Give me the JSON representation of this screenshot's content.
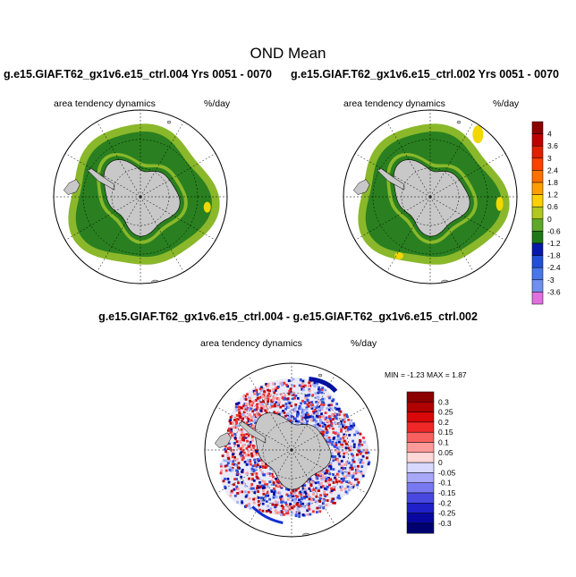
{
  "main_title": "OND Mean",
  "case_title_left": "g.e15.GIAF.T62_gx1v6.e15_ctrl.004  Yrs 0051 - 0070",
  "case_title_right": "g.e15.GIAF.T62_gx1v6.e15_ctrl.002  Yrs 0051 - 0070",
  "diff_title": "g.e15.GIAF.T62_gx1v6.e15_ctrl.004 - g.e15.GIAF.T62_gx1v6.e15_ctrl.002",
  "panels": {
    "left": {
      "variable": "area tendency dynamics",
      "units": "%/day"
    },
    "right": {
      "variable": "area tendency dynamics",
      "units": "%/day"
    },
    "diff": {
      "variable": "area tendency dynamics",
      "units": "%/day",
      "minmax": "MIN =  -1.23 MAX =   1.87"
    }
  },
  "colors": {
    "land": "#c8c8c8",
    "ice_strong": "#2a8020",
    "ice_weak": "#8ab82a",
    "ice_edge": "#f0d800",
    "diff_red": "#d81010",
    "diff_blue": "#1030d0"
  },
  "chart_data": [
    {
      "type": "heatmap",
      "projection": "south polar stereographic",
      "title": "area tendency dynamics",
      "units": "%/day",
      "colorbar": {
        "labels": [
          "4",
          "3.6",
          "3",
          "2.4",
          "1.8",
          "1.2",
          "0.6",
          "0",
          "-0.6",
          "-1.2",
          "-1.8",
          "-2.4",
          "-3",
          "-3.6"
        ],
        "colors": [
          "#8b0000",
          "#c00000",
          "#e02000",
          "#ff4000",
          "#ff7000",
          "#ffa000",
          "#ffd000",
          "#b0c820",
          "#5ea82a",
          "#1e7818",
          "#0818a8",
          "#2050d8",
          "#4878e8",
          "#7090f0",
          "#e070e0"
        ]
      }
    },
    {
      "type": "heatmap",
      "projection": "south polar stereographic",
      "title": "area tendency dynamics",
      "units": "%/day",
      "min": -1.23,
      "max": 1.87,
      "colorbar": {
        "labels": [
          "0.3",
          "0.25",
          "0.2",
          "0.15",
          "0.1",
          "0.05",
          "0",
          "-0.05",
          "-0.1",
          "-0.15",
          "-0.2",
          "-0.25",
          "-0.3"
        ],
        "colors": [
          "#8b0000",
          "#b00000",
          "#d80808",
          "#f02828",
          "#f86060",
          "#fc9a9a",
          "#ffd8d8",
          "#d8d8ff",
          "#a8a8f8",
          "#7878f0",
          "#4848e0",
          "#2020c8",
          "#0808a0",
          "#000070"
        ]
      }
    }
  ]
}
